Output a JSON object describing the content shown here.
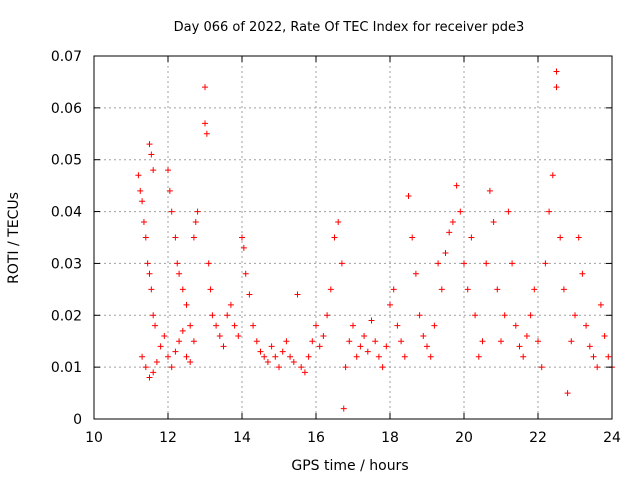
{
  "chart_data": {
    "type": "scatter",
    "title": "Day 066 of 2022, Rate Of TEC Index for receiver pde3",
    "xlabel": "GPS time / hours",
    "ylabel": "ROTI / TECUs",
    "xlim": [
      10,
      24
    ],
    "ylim": [
      0,
      0.07
    ],
    "x_ticks": [
      "10",
      "12",
      "14",
      "16",
      "18",
      "20",
      "22",
      "24"
    ],
    "y_ticks": [
      "0",
      "0.01",
      "0.02",
      "0.03",
      "0.04",
      "0.05",
      "0.06",
      "0.07"
    ],
    "grid": true,
    "legend": "none",
    "marker": "plus",
    "color": "#ff0000",
    "series": [
      {
        "values_description_omitted": false,
        "points": [
          [
            11.2,
            0.047
          ],
          [
            11.25,
            0.044
          ],
          [
            11.3,
            0.042
          ],
          [
            11.35,
            0.038
          ],
          [
            11.4,
            0.035
          ],
          [
            11.45,
            0.03
          ],
          [
            11.5,
            0.028
          ],
          [
            11.55,
            0.025
          ],
          [
            11.6,
            0.02
          ],
          [
            11.65,
            0.018
          ],
          [
            11.5,
            0.053
          ],
          [
            11.55,
            0.051
          ],
          [
            11.6,
            0.048
          ],
          [
            11.3,
            0.012
          ],
          [
            11.4,
            0.01
          ],
          [
            11.5,
            0.008
          ],
          [
            11.6,
            0.009
          ],
          [
            11.7,
            0.011
          ],
          [
            11.8,
            0.014
          ],
          [
            11.9,
            0.016
          ],
          [
            12.0,
            0.048
          ],
          [
            12.05,
            0.044
          ],
          [
            12.1,
            0.04
          ],
          [
            12.2,
            0.035
          ],
          [
            12.25,
            0.03
          ],
          [
            12.3,
            0.028
          ],
          [
            12.4,
            0.025
          ],
          [
            12.5,
            0.022
          ],
          [
            12.6,
            0.018
          ],
          [
            12.7,
            0.015
          ],
          [
            12.0,
            0.012
          ],
          [
            12.1,
            0.01
          ],
          [
            12.2,
            0.013
          ],
          [
            12.3,
            0.015
          ],
          [
            12.4,
            0.017
          ],
          [
            12.5,
            0.012
          ],
          [
            12.6,
            0.011
          ],
          [
            12.7,
            0.035
          ],
          [
            12.75,
            0.038
          ],
          [
            12.8,
            0.04
          ],
          [
            13.0,
            0.064
          ],
          [
            13.0,
            0.057
          ],
          [
            13.05,
            0.055
          ],
          [
            13.1,
            0.03
          ],
          [
            13.15,
            0.025
          ],
          [
            13.2,
            0.02
          ],
          [
            13.3,
            0.018
          ],
          [
            13.4,
            0.016
          ],
          [
            13.5,
            0.014
          ],
          [
            13.6,
            0.02
          ],
          [
            13.7,
            0.022
          ],
          [
            13.8,
            0.018
          ],
          [
            13.9,
            0.016
          ],
          [
            14.0,
            0.035
          ],
          [
            14.05,
            0.033
          ],
          [
            14.1,
            0.028
          ],
          [
            14.2,
            0.024
          ],
          [
            14.3,
            0.018
          ],
          [
            14.4,
            0.015
          ],
          [
            14.5,
            0.013
          ],
          [
            14.6,
            0.012
          ],
          [
            14.7,
            0.011
          ],
          [
            14.8,
            0.014
          ],
          [
            14.9,
            0.012
          ],
          [
            15.0,
            0.01
          ],
          [
            15.1,
            0.013
          ],
          [
            15.2,
            0.015
          ],
          [
            15.3,
            0.012
          ],
          [
            15.4,
            0.011
          ],
          [
            15.5,
            0.024
          ],
          [
            15.6,
            0.01
          ],
          [
            15.7,
            0.009
          ],
          [
            15.8,
            0.012
          ],
          [
            15.9,
            0.015
          ],
          [
            16.0,
            0.018
          ],
          [
            16.1,
            0.014
          ],
          [
            16.2,
            0.016
          ],
          [
            16.3,
            0.02
          ],
          [
            16.4,
            0.025
          ],
          [
            16.5,
            0.035
          ],
          [
            16.6,
            0.038
          ],
          [
            16.7,
            0.03
          ],
          [
            16.75,
            0.002
          ],
          [
            16.8,
            0.01
          ],
          [
            16.9,
            0.015
          ],
          [
            17.0,
            0.018
          ],
          [
            17.1,
            0.012
          ],
          [
            17.2,
            0.014
          ],
          [
            17.3,
            0.016
          ],
          [
            17.4,
            0.013
          ],
          [
            17.5,
            0.019
          ],
          [
            17.6,
            0.015
          ],
          [
            17.7,
            0.012
          ],
          [
            17.8,
            0.01
          ],
          [
            17.9,
            0.014
          ],
          [
            18.0,
            0.022
          ],
          [
            18.1,
            0.025
          ],
          [
            18.2,
            0.018
          ],
          [
            18.3,
            0.015
          ],
          [
            18.4,
            0.012
          ],
          [
            18.5,
            0.043
          ],
          [
            18.6,
            0.035
          ],
          [
            18.7,
            0.028
          ],
          [
            18.8,
            0.02
          ],
          [
            18.9,
            0.016
          ],
          [
            19.0,
            0.014
          ],
          [
            19.1,
            0.012
          ],
          [
            19.2,
            0.018
          ],
          [
            19.3,
            0.03
          ],
          [
            19.4,
            0.025
          ],
          [
            19.5,
            0.032
          ],
          [
            19.6,
            0.036
          ],
          [
            19.7,
            0.038
          ],
          [
            19.8,
            0.045
          ],
          [
            19.9,
            0.04
          ],
          [
            20.0,
            0.03
          ],
          [
            20.1,
            0.025
          ],
          [
            20.2,
            0.035
          ],
          [
            20.3,
            0.02
          ],
          [
            20.4,
            0.012
          ],
          [
            20.5,
            0.015
          ],
          [
            20.6,
            0.03
          ],
          [
            20.7,
            0.044
          ],
          [
            20.8,
            0.038
          ],
          [
            20.9,
            0.025
          ],
          [
            21.0,
            0.015
          ],
          [
            21.1,
            0.02
          ],
          [
            21.2,
            0.04
          ],
          [
            21.3,
            0.03
          ],
          [
            21.4,
            0.018
          ],
          [
            21.5,
            0.014
          ],
          [
            21.6,
            0.012
          ],
          [
            21.7,
            0.016
          ],
          [
            21.8,
            0.02
          ],
          [
            21.9,
            0.025
          ],
          [
            22.0,
            0.015
          ],
          [
            22.1,
            0.01
          ],
          [
            22.2,
            0.03
          ],
          [
            22.3,
            0.04
          ],
          [
            22.4,
            0.047
          ],
          [
            22.5,
            0.067
          ],
          [
            22.5,
            0.064
          ],
          [
            22.6,
            0.035
          ],
          [
            22.7,
            0.025
          ],
          [
            22.8,
            0.005
          ],
          [
            22.9,
            0.015
          ],
          [
            23.0,
            0.02
          ],
          [
            23.1,
            0.035
          ],
          [
            23.2,
            0.028
          ],
          [
            23.3,
            0.018
          ],
          [
            23.4,
            0.014
          ],
          [
            23.5,
            0.012
          ],
          [
            23.6,
            0.01
          ],
          [
            23.7,
            0.022
          ],
          [
            23.8,
            0.016
          ],
          [
            23.9,
            0.012
          ],
          [
            24.0,
            0.01
          ]
        ]
      }
    ]
  }
}
